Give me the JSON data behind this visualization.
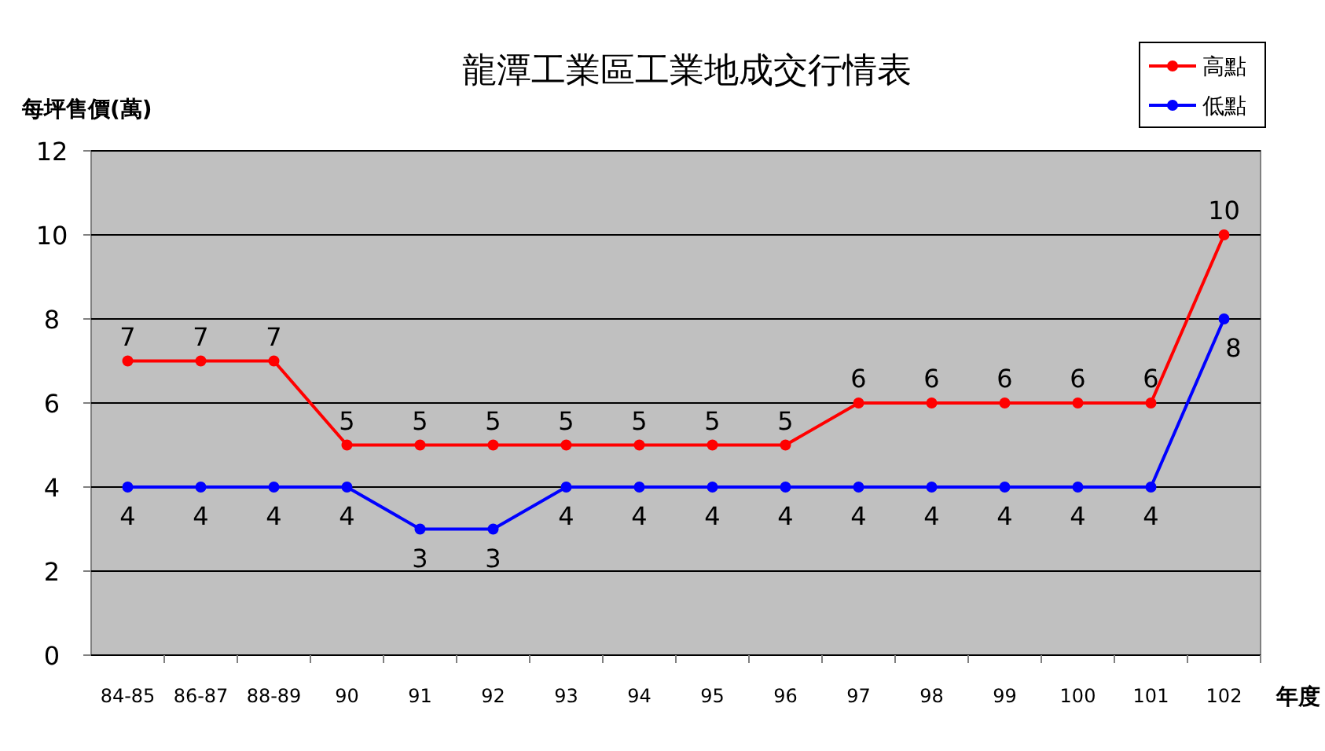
{
  "chart_data": {
    "type": "line",
    "title": "龍潭工業區工業地成交行情表",
    "ylabel": "每坪售價(萬)",
    "xlabel": "年度",
    "categories": [
      "84-85",
      "86-87",
      "88-89",
      "90",
      "91",
      "92",
      "93",
      "94",
      "95",
      "96",
      "97",
      "98",
      "99",
      "100",
      "101",
      "102"
    ],
    "series": [
      {
        "name": "高點",
        "color": "#ff0000",
        "values": [
          7,
          7,
          7,
          5,
          5,
          5,
          5,
          5,
          5,
          5,
          6,
          6,
          6,
          6,
          6,
          10
        ]
      },
      {
        "name": "低點",
        "color": "#0000ff",
        "values": [
          4,
          4,
          4,
          4,
          3,
          3,
          4,
          4,
          4,
          4,
          4,
          4,
          4,
          4,
          4,
          8
        ]
      }
    ],
    "ylim": [
      0,
      12
    ],
    "yticks": [
      0,
      2,
      4,
      6,
      8,
      10,
      12
    ],
    "grid": "y",
    "legend": "top right",
    "marker": "circle",
    "line_style": "solid",
    "data_labels": true
  }
}
